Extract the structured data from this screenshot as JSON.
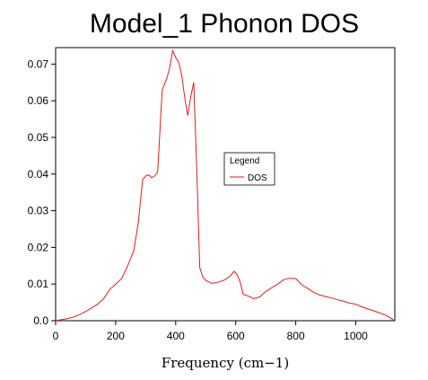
{
  "chart_data": {
    "type": "line",
    "title": "Model_1 Phonon DOS",
    "xlabel": "Frequency (cm−1)",
    "ylabel": "",
    "xlim": [
      0,
      1130
    ],
    "ylim": [
      0,
      0.0745
    ],
    "x_ticks": [
      0,
      200,
      400,
      600,
      800,
      1000
    ],
    "x_tick_labels": [
      "0",
      "200",
      "400",
      "600",
      "800",
      "1000"
    ],
    "y_ticks": [
      0,
      0.01,
      0.02,
      0.03,
      0.04,
      0.05,
      0.06,
      0.07
    ],
    "y_tick_labels": [
      "0.0",
      "0.01",
      "0.02",
      "0.03",
      "0.04",
      "0.05",
      "0.06",
      "0.07"
    ],
    "grid": false,
    "legend": {
      "title": "Legend",
      "position": "center-right",
      "entries": [
        {
          "label": "DOS",
          "color": "#e31a1c"
        }
      ]
    },
    "series": [
      {
        "name": "DOS",
        "color": "#e31a1c",
        "x": [
          0,
          20,
          40,
          60,
          80,
          100,
          120,
          140,
          160,
          180,
          200,
          220,
          240,
          260,
          275,
          290,
          300,
          310,
          320,
          330,
          340,
          355,
          370,
          380,
          390,
          400,
          410,
          420,
          430,
          440,
          450,
          460,
          470,
          480,
          490,
          500,
          520,
          540,
          560,
          580,
          595,
          605,
          615,
          625,
          640,
          660,
          680,
          700,
          720,
          740,
          760,
          780,
          800,
          820,
          840,
          860,
          880,
          900,
          920,
          940,
          960,
          980,
          1000,
          1020,
          1040,
          1060,
          1080,
          1100,
          1115,
          1125
        ],
        "y": [
          0.0,
          0.0003,
          0.0006,
          0.001,
          0.0017,
          0.0025,
          0.0035,
          0.0045,
          0.006,
          0.0085,
          0.01,
          0.0115,
          0.015,
          0.019,
          0.0265,
          0.0385,
          0.0395,
          0.0398,
          0.039,
          0.0395,
          0.0405,
          0.063,
          0.066,
          0.069,
          0.0737,
          0.0718,
          0.0705,
          0.067,
          0.061,
          0.056,
          0.061,
          0.065,
          0.042,
          0.0145,
          0.012,
          0.011,
          0.0102,
          0.0105,
          0.011,
          0.012,
          0.0135,
          0.0125,
          0.0105,
          0.0072,
          0.0068,
          0.006,
          0.0065,
          0.008,
          0.009,
          0.01,
          0.0112,
          0.0116,
          0.0115,
          0.0098,
          0.0088,
          0.0077,
          0.007,
          0.0066,
          0.0062,
          0.0057,
          0.0053,
          0.0048,
          0.0045,
          0.0038,
          0.0032,
          0.0027,
          0.0021,
          0.0015,
          0.0008,
          0.0002
        ]
      }
    ]
  }
}
